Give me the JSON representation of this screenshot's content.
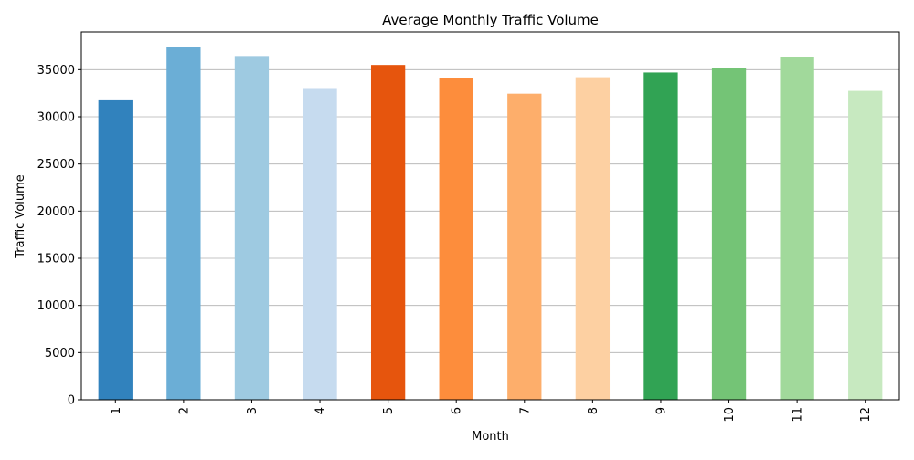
{
  "chart_data": {
    "type": "bar",
    "title": "Average Monthly Traffic Volume",
    "xlabel": "Month",
    "ylabel": "Traffic Volume",
    "categories": [
      "1",
      "2",
      "3",
      "4",
      "5",
      "6",
      "7",
      "8",
      "9",
      "10",
      "11",
      "12"
    ],
    "values": [
      31750,
      37450,
      36450,
      33050,
      35500,
      34100,
      32450,
      34200,
      34700,
      35200,
      36350,
      32750
    ],
    "colors": [
      "#3182bd",
      "#6baed6",
      "#9ecae1",
      "#c6dbef",
      "#e6550d",
      "#fd8d3c",
      "#fdae6b",
      "#fdd0a2",
      "#31a354",
      "#74c476",
      "#a1d99b",
      "#c7e9c0"
    ],
    "ylim": [
      0,
      39000
    ],
    "yticks": [
      0,
      5000,
      10000,
      15000,
      20000,
      25000,
      30000,
      35000
    ],
    "grid": "y",
    "legend": "none",
    "xtick_rotation": "vertical"
  }
}
